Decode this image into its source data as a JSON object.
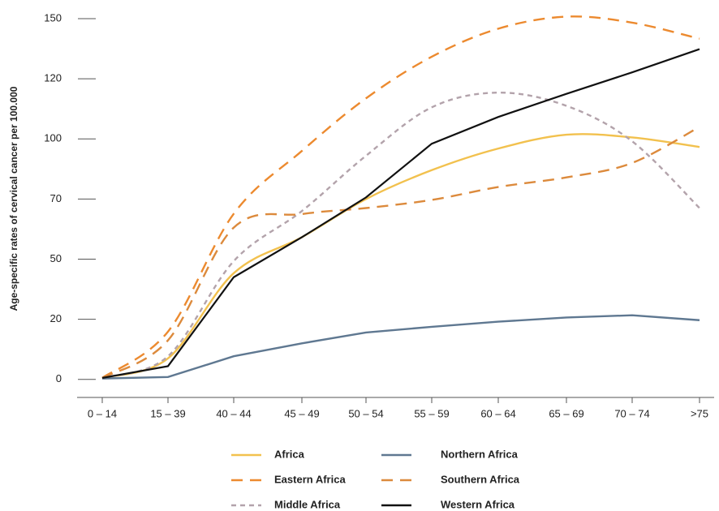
{
  "chart_data": {
    "type": "line",
    "y_label": "Age-specific rates of cervical cancer per 100.000",
    "categories": [
      "0 – 14",
      "15 – 39",
      "40 – 44",
      "45 – 49",
      "50 – 54",
      "55 – 59",
      "60 – 64",
      "65 – 69",
      "70 – 74",
      ">75"
    ],
    "ylim": [
      -6,
      150
    ],
    "yticks": [
      0,
      20,
      50,
      70,
      100,
      120,
      150
    ],
    "series": [
      {
        "name": "Africa",
        "color": "#f2c14e",
        "dash": "solid",
        "smooth": true,
        "values": [
          0.5,
          7,
          43,
          57.3,
          70,
          84.4,
          95.2,
          101.4,
          100.5,
          96
        ]
      },
      {
        "name": "Eastern Africa",
        "color": "#ec8a2f",
        "dash": "long",
        "smooth": true,
        "values": [
          0.5,
          15.9,
          65.1,
          94,
          113.5,
          131,
          145,
          151,
          148,
          140
        ]
      },
      {
        "name": "Middle Africa",
        "color": "#b3a3ab",
        "dash": "short",
        "smooth": true,
        "values": [
          0.5,
          7.7,
          49,
          66,
          91.6,
          110.5,
          115.4,
          111,
          98.8,
          67
        ]
      },
      {
        "name": "Northern Africa",
        "color": "#5f7891",
        "dash": "solid",
        "smooth": false,
        "values": [
          0.3,
          0.8,
          7.7,
          12,
          15.6,
          17.5,
          19.2,
          20.9,
          22,
          19.7
        ]
      },
      {
        "name": "Southern Africa",
        "color": "#dc8a3c",
        "dash": "long",
        "smooth": true,
        "values": [
          0.5,
          13,
          60.5,
          65,
          67,
          69.7,
          76,
          80.8,
          88,
          104
        ]
      },
      {
        "name": "Western Africa",
        "color": "#111111",
        "dash": "solid",
        "smooth": false,
        "values": [
          0.5,
          4.4,
          41,
          57.3,
          70.8,
          97.6,
          107.3,
          115,
          123.2,
          134.8
        ]
      }
    ]
  }
}
